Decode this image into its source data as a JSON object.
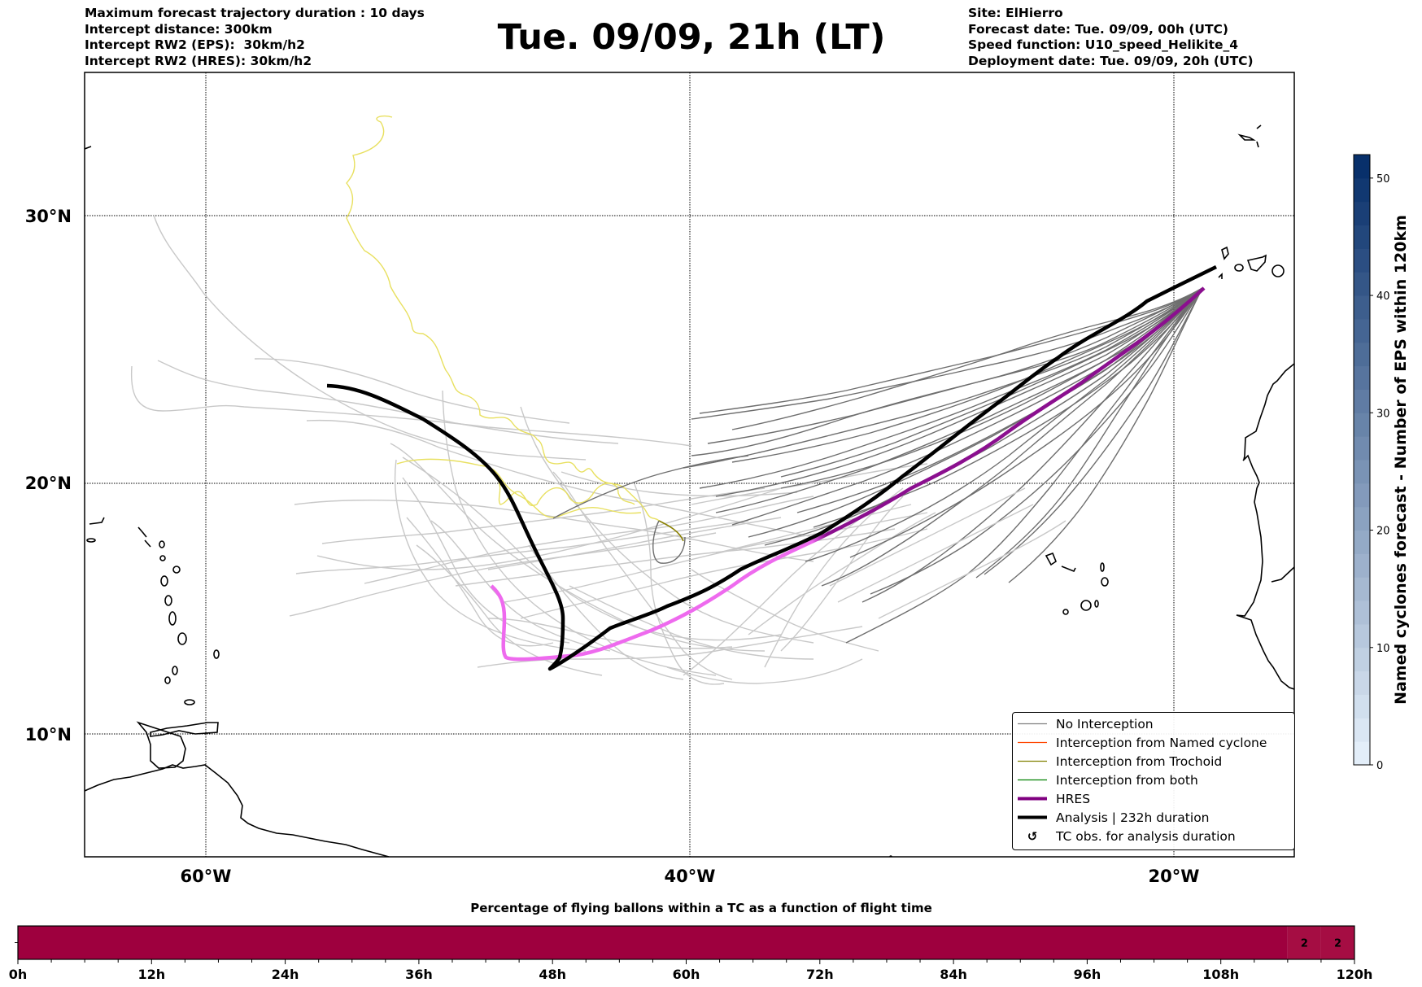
{
  "header": {
    "left": [
      "Maximum forecast trajectory duration : 10 days",
      "Intercept distance: 300km",
      "Intercept RW2 (EPS):  30km/h2",
      "Intercept RW2 (HRES): 30km/h2"
    ],
    "title": "Tue. 09/09, 21h (LT)",
    "right": [
      "Site: ElHierro",
      "Forecast date: Tue. 09/09, 00h (UTC)",
      "Speed function: U10_speed_Helikite_4",
      "Deployment date: Tue. 09/09, 20h (UTC)"
    ]
  },
  "map": {
    "lat_labels": [
      "30°N",
      "20°N",
      "10°N"
    ],
    "lon_labels": [
      "60°W",
      "40°W",
      "20°W"
    ],
    "colors": {
      "eps_far": "#c8c8c8",
      "eps_near": "#6e6e6e",
      "trochoid": "#e8e060",
      "trochoid_dark": "#8a8000",
      "hres_near": "#8b0f8f",
      "hres_far": "#ee6aee",
      "analysis": "#000000"
    }
  },
  "legend": {
    "items": [
      {
        "label": "No Interception",
        "color": "#808080",
        "style": "thin"
      },
      {
        "label": "Interception from Named cyclone",
        "color": "#ff4500",
        "style": "thin"
      },
      {
        "label": "Interception from Trochoid",
        "color": "#808000",
        "style": "thin"
      },
      {
        "label": "Interception from both",
        "color": "#008000",
        "style": "thin"
      },
      {
        "label": "HRES",
        "color": "#800080",
        "style": "thick"
      },
      {
        "label": "Analysis | 232h duration",
        "color": "#000000",
        "style": "thick"
      },
      {
        "label": "TC obs. for analysis duration",
        "color": "#000000",
        "style": "marker",
        "marker": "↺"
      }
    ]
  },
  "colorbar": {
    "label": "Named cyclones forecast - Number of EPS within 120km",
    "min": 0,
    "max": 52,
    "ticks": [
      "0",
      "10",
      "20",
      "30",
      "40",
      "50"
    ],
    "tick_values": [
      0,
      10,
      20,
      30,
      40,
      50
    ],
    "color_low": "#e3eef9",
    "color_high": "#08306b"
  },
  "chart_data": {
    "type": "heatmap",
    "title": "Percentage of flying ballons within a TC as a function of flight time",
    "x_ticks": [
      "0h",
      "12h",
      "24h",
      "36h",
      "48h",
      "60h",
      "72h",
      "84h",
      "96h",
      "108h",
      "120h"
    ],
    "x_range": [
      0,
      120
    ],
    "bins_hours": 3,
    "segments": [
      {
        "start": 0,
        "end": 114,
        "value": 0,
        "color": "#9e003e"
      },
      {
        "start": 114,
        "end": 117,
        "value": 2,
        "label": "2",
        "color": "#a50d43"
      },
      {
        "start": 117,
        "end": 120,
        "value": 2,
        "label": "2",
        "color": "#a50d43"
      }
    ]
  }
}
